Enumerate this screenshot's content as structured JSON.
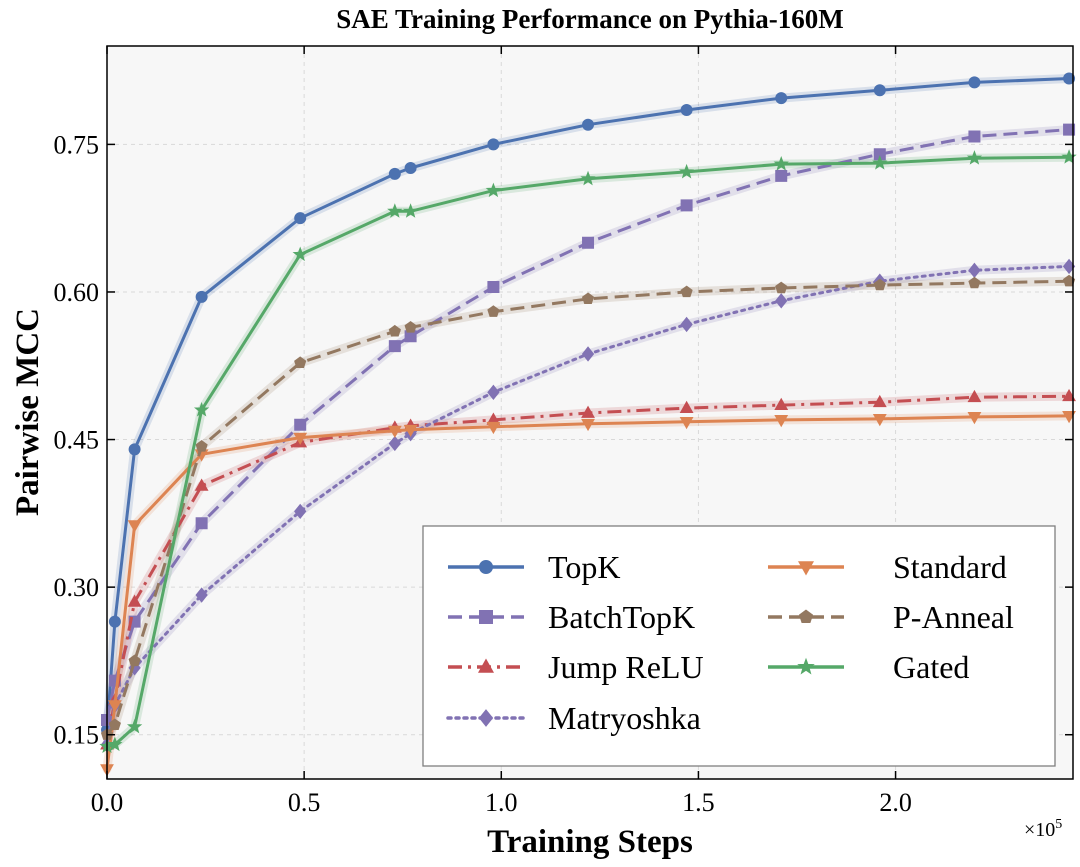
{
  "chart_data": {
    "type": "line",
    "title": "SAE Training Performance on Pythia-160M",
    "xlabel": "Training Steps",
    "ylabel": "Pairwise MCC",
    "xlim": [
      0,
      2.45
    ],
    "ylim": [
      0.105,
      0.85
    ],
    "x_scale_label_base": "×10",
    "x_scale_label_exp": "5",
    "xticks": [
      0.0,
      0.5,
      1.0,
      1.5,
      2.0
    ],
    "xtick_labels": [
      "0.0",
      "0.5",
      "1.0",
      "1.5",
      "2.0"
    ],
    "yticks": [
      0.15,
      0.3,
      0.45,
      0.6,
      0.75
    ],
    "ytick_labels": [
      "0.15",
      "0.30",
      "0.45",
      "0.60",
      "0.75"
    ],
    "grid": true,
    "legend_position": "lower-right",
    "series": [
      {
        "name": "TopK",
        "color": "#4c72b0",
        "dash": "solid",
        "marker": "circle",
        "x": [
          0.0,
          0.02,
          0.07,
          0.24,
          0.49,
          0.73,
          0.77,
          0.98,
          1.22,
          1.47,
          1.71,
          1.96,
          2.2,
          2.44
        ],
        "y": [
          0.155,
          0.265,
          0.44,
          0.595,
          0.675,
          0.72,
          0.726,
          0.75,
          0.77,
          0.785,
          0.797,
          0.805,
          0.813,
          0.817
        ]
      },
      {
        "name": "BatchTopK",
        "color": "#8172b3",
        "dash": "dashed",
        "marker": "square",
        "x": [
          0.0,
          0.02,
          0.07,
          0.24,
          0.49,
          0.73,
          0.77,
          0.98,
          1.22,
          1.47,
          1.71,
          1.96,
          2.2,
          2.44
        ],
        "y": [
          0.165,
          0.205,
          0.265,
          0.365,
          0.465,
          0.545,
          0.555,
          0.605,
          0.65,
          0.688,
          0.718,
          0.74,
          0.758,
          0.765
        ]
      },
      {
        "name": "Jump ReLU",
        "color": "#c44e52",
        "dash": "dashdot",
        "marker": "triangle-up",
        "x": [
          0.0,
          0.02,
          0.07,
          0.24,
          0.49,
          0.73,
          0.77,
          0.98,
          1.22,
          1.47,
          1.71,
          1.96,
          2.2,
          2.44
        ],
        "y": [
          0.14,
          0.185,
          0.285,
          0.403,
          0.447,
          0.462,
          0.464,
          0.47,
          0.477,
          0.482,
          0.485,
          0.488,
          0.493,
          0.494
        ]
      },
      {
        "name": "Matryoshka",
        "color": "#8172b3",
        "dash": "dotted",
        "marker": "diamond",
        "x": [
          0.0,
          0.02,
          0.07,
          0.24,
          0.49,
          0.73,
          0.77,
          0.98,
          1.22,
          1.47,
          1.71,
          1.96,
          2.2,
          2.44
        ],
        "y": [
          0.14,
          0.18,
          0.218,
          0.292,
          0.377,
          0.446,
          0.456,
          0.498,
          0.537,
          0.567,
          0.591,
          0.611,
          0.622,
          0.626
        ]
      },
      {
        "name": "Standard",
        "color": "#dd8452",
        "dash": "solid",
        "marker": "triangle-down",
        "x": [
          0.0,
          0.02,
          0.07,
          0.24,
          0.49,
          0.73,
          0.77,
          0.98,
          1.22,
          1.47,
          1.71,
          1.96,
          2.2,
          2.44
        ],
        "y": [
          0.115,
          0.18,
          0.363,
          0.435,
          0.452,
          0.459,
          0.46,
          0.463,
          0.466,
          0.468,
          0.47,
          0.471,
          0.473,
          0.474
        ]
      },
      {
        "name": "P-Anneal",
        "color": "#937860",
        "dash": "dashed",
        "marker": "pentagon",
        "x": [
          0.0,
          0.02,
          0.07,
          0.24,
          0.49,
          0.73,
          0.77,
          0.98,
          1.22,
          1.47,
          1.71,
          1.96,
          2.2,
          2.44
        ],
        "y": [
          0.15,
          0.16,
          0.225,
          0.443,
          0.528,
          0.56,
          0.564,
          0.58,
          0.593,
          0.6,
          0.604,
          0.607,
          0.609,
          0.611
        ]
      },
      {
        "name": "Gated",
        "color": "#55a868",
        "dash": "solid",
        "marker": "star",
        "x": [
          0.0,
          0.02,
          0.07,
          0.24,
          0.49,
          0.73,
          0.77,
          0.98,
          1.22,
          1.47,
          1.71,
          1.96,
          2.2,
          2.44
        ],
        "y": [
          0.138,
          0.14,
          0.158,
          0.48,
          0.638,
          0.682,
          0.682,
          0.703,
          0.715,
          0.722,
          0.73,
          0.731,
          0.736,
          0.737
        ]
      }
    ]
  }
}
